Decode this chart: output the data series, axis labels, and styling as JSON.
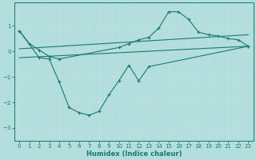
{
  "xlabel": "Humidex (Indice chaleur)",
  "background_color": "#b2dede",
  "grid_color": "#c8e8e8",
  "line_color": "#1a7a6e",
  "xlim": [
    -0.5,
    23.5
  ],
  "ylim": [
    -3.5,
    1.9
  ],
  "yticks": [
    -3,
    -2,
    -1,
    0,
    1
  ],
  "xticks": [
    0,
    1,
    2,
    3,
    4,
    5,
    6,
    7,
    8,
    9,
    10,
    11,
    12,
    13,
    14,
    15,
    16,
    17,
    18,
    19,
    20,
    21,
    22,
    23
  ],
  "series": [
    {
      "x": [
        0,
        1,
        2,
        3,
        4,
        10,
        11,
        12,
        13,
        14,
        15,
        16,
        17,
        18,
        19,
        20,
        21,
        22,
        23
      ],
      "y": [
        0.8,
        0.3,
        0.05,
        -0.2,
        -0.3,
        0.15,
        0.3,
        0.45,
        0.55,
        0.9,
        1.55,
        1.55,
        1.25,
        0.75,
        0.65,
        0.6,
        0.5,
        0.45,
        0.2
      ],
      "marker": true
    },
    {
      "x": [
        0,
        2,
        3,
        4,
        5,
        6,
        7,
        8,
        9,
        10,
        11,
        12,
        13,
        23
      ],
      "y": [
        0.8,
        -0.25,
        -0.3,
        -1.2,
        -2.2,
        -2.4,
        -2.5,
        -2.35,
        -1.7,
        -1.15,
        -0.55,
        -1.15,
        -0.6,
        0.2
      ],
      "marker": true
    },
    {
      "x": [
        0,
        23
      ],
      "y": [
        0.1,
        0.65
      ],
      "marker": false
    },
    {
      "x": [
        0,
        23
      ],
      "y": [
        -0.25,
        0.2
      ],
      "marker": false
    }
  ]
}
